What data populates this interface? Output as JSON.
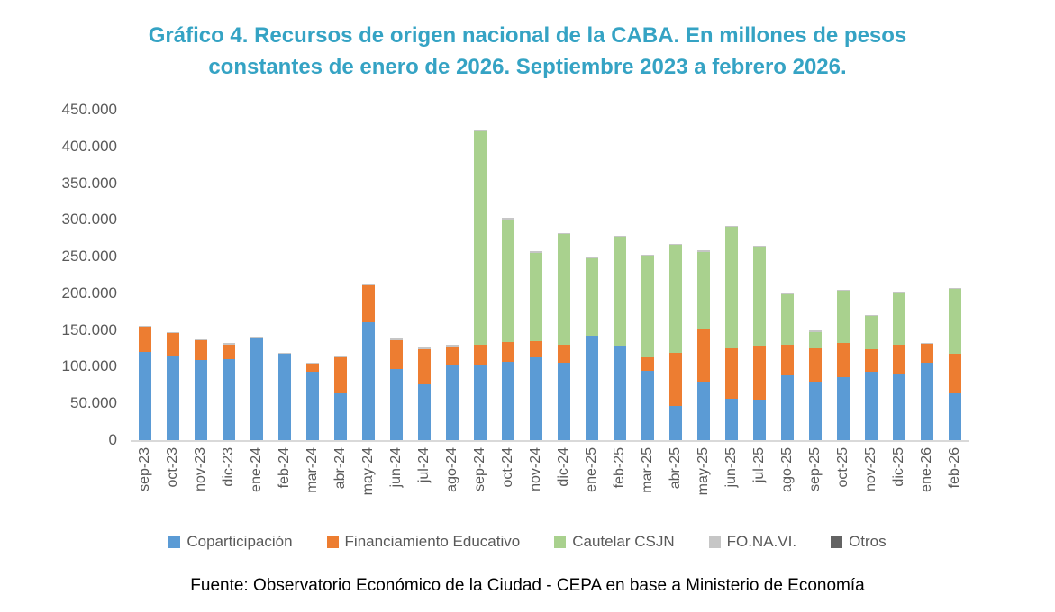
{
  "title": {
    "line1": "Gráfico 4. Recursos de origen nacional de la CABA. En millones de pesos",
    "line2": "constantes de enero de 2026. Septiembre 2023 a febrero 2026.",
    "color": "#35a3c4"
  },
  "source": "Fuente: Observatorio Económico de la Ciudad - CEPA en base a Ministerio de Economía",
  "chart_data": {
    "type": "bar",
    "stacked": true,
    "title": "Gráfico 4. Recursos de origen nacional de la CABA. En millones de pesos constantes de enero de 2026. Septiembre 2023 a febrero 2026.",
    "xlabel": "",
    "ylabel": "",
    "ylim": [
      0,
      450000
    ],
    "grid": false,
    "legend_position": "bottom",
    "ytick_labels": [
      "450.000",
      "400.000",
      "350.000",
      "300.000",
      "250.000",
      "200.000",
      "150.000",
      "100.000",
      "50.000",
      "0"
    ],
    "ytick_values": [
      450000,
      400000,
      350000,
      300000,
      250000,
      200000,
      150000,
      100000,
      50000,
      0
    ],
    "categories": [
      "sep-23",
      "oct-23",
      "nov-23",
      "dic-23",
      "ene-24",
      "feb-24",
      "mar-24",
      "abr-24",
      "may-24",
      "jun-24",
      "jul-24",
      "ago-24",
      "sep-24",
      "oct-24",
      "nov-24",
      "dic-24",
      "ene-25",
      "feb-25",
      "mar-25",
      "abr-25",
      "may-25",
      "jun-25",
      "jul-25",
      "ago-25",
      "sep-25",
      "oct-25",
      "nov-25",
      "dic-25",
      "ene-26",
      "feb-26"
    ],
    "series": [
      {
        "name": "Coparticipación",
        "color": "#5B9BD5",
        "values": [
          120500,
          115600,
          109500,
          110300,
          139500,
          117400,
          93000,
          63400,
          160200,
          96500,
          75600,
          102100,
          103300,
          107000,
          112800,
          105800,
          142600,
          128700,
          94400,
          47000,
          79300,
          56000,
          55500,
          87900,
          79300,
          86200,
          93600,
          89100,
          105100,
          64100
        ]
      },
      {
        "name": "Financiamiento Educativo",
        "color": "#ED7D31",
        "values": [
          33500,
          30000,
          26700,
          20200,
          0,
          0,
          11000,
          49500,
          51300,
          40200,
          48800,
          26000,
          26300,
          26600,
          22400,
          24200,
          0,
          0,
          18800,
          71900,
          72700,
          69400,
          73200,
          41700,
          45400,
          46200,
          29800,
          40500,
          25800,
          54000
        ]
      },
      {
        "name": "Cautelar CSJN",
        "color": "#A9D18E",
        "values": [
          0,
          0,
          0,
          0,
          0,
          0,
          0,
          0,
          0,
          0,
          0,
          0,
          290600,
          167300,
          120400,
          150900,
          105200,
          148500,
          137900,
          147300,
          104800,
          165300,
          135000,
          68700,
          23000,
          71200,
          45500,
          71200,
          0,
          87600
        ]
      },
      {
        "name": "FO.NA.VI.",
        "color": "#C6C6C6",
        "values": [
          1500,
          1500,
          1500,
          1500,
          1500,
          1500,
          1500,
          1500,
          1500,
          1500,
          1500,
          1500,
          1500,
          1500,
          1500,
          1500,
          1500,
          1500,
          1500,
          1500,
          1500,
          1500,
          1500,
          1500,
          1500,
          1500,
          1500,
          1500,
          1500,
          1500
        ]
      },
      {
        "name": "Otros",
        "color": "#636363",
        "values": [
          0,
          0,
          0,
          0,
          0,
          0,
          0,
          0,
          0,
          0,
          0,
          0,
          0,
          0,
          0,
          0,
          0,
          0,
          0,
          0,
          0,
          0,
          0,
          0,
          0,
          0,
          0,
          0,
          0,
          0
        ]
      }
    ]
  }
}
